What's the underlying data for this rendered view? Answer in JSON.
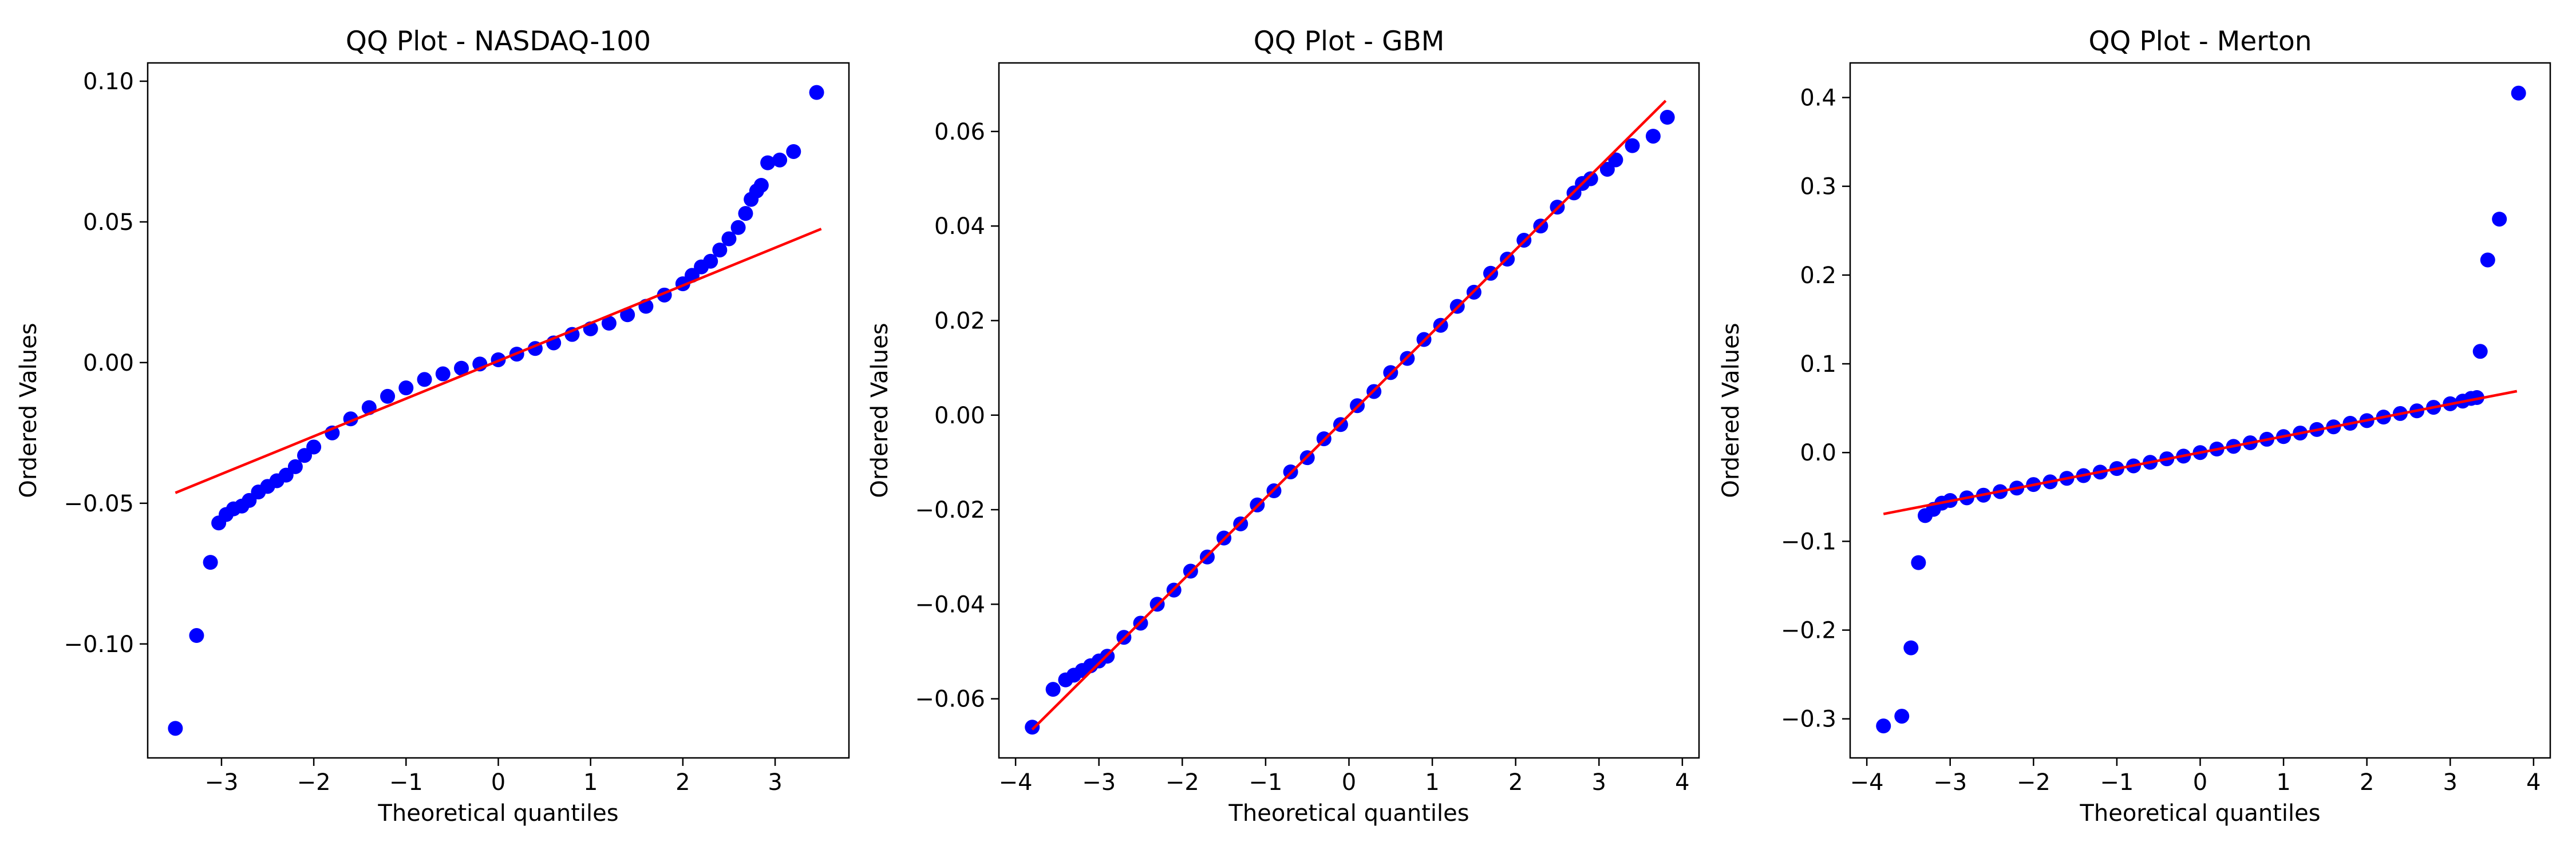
{
  "chart_data": [
    {
      "type": "scatter",
      "title": "QQ Plot - NASDAQ-100",
      "xlabel": "Theoretical quantiles",
      "ylabel": "Ordered Values",
      "xlim": [
        -3.8,
        3.8
      ],
      "ylim": [
        -0.1405,
        0.1065
      ],
      "xticks": [
        -3,
        -2,
        -1,
        0,
        1,
        2,
        3
      ],
      "xtick_labels": [
        "−3",
        "−2",
        "−1",
        "0",
        "1",
        "2",
        "3"
      ],
      "yticks": [
        -0.1,
        -0.05,
        0.0,
        0.05,
        0.1
      ],
      "ytick_labels": [
        "−0.10",
        "−0.05",
        "0.00",
        "0.05",
        "0.10"
      ],
      "grid": false,
      "marker_color": "#0000ff",
      "line_color": "#ff0000",
      "fit_line": {
        "slope": 0.0134,
        "intercept": 0.0006,
        "x_range": [
          -3.5,
          3.5
        ]
      },
      "points": [
        [
          -3.5,
          -0.13
        ],
        [
          -3.27,
          -0.097
        ],
        [
          -3.12,
          -0.071
        ],
        [
          -3.03,
          -0.057
        ],
        [
          -2.95,
          -0.054
        ],
        [
          -2.87,
          -0.052
        ],
        [
          -2.78,
          -0.051
        ],
        [
          -2.7,
          -0.049
        ],
        [
          -2.6,
          -0.046
        ],
        [
          -2.5,
          -0.044
        ],
        [
          -2.4,
          -0.042
        ],
        [
          -2.3,
          -0.04
        ],
        [
          -2.2,
          -0.037
        ],
        [
          -2.1,
          -0.033
        ],
        [
          -2.0,
          -0.03
        ],
        [
          -1.8,
          -0.025
        ],
        [
          -1.6,
          -0.02
        ],
        [
          -1.4,
          -0.016
        ],
        [
          -1.2,
          -0.012
        ],
        [
          -1.0,
          -0.009
        ],
        [
          -0.8,
          -0.006
        ],
        [
          -0.6,
          -0.004
        ],
        [
          -0.4,
          -0.002
        ],
        [
          -0.2,
          -0.0005
        ],
        [
          0.0,
          0.001
        ],
        [
          0.2,
          0.003
        ],
        [
          0.4,
          0.005
        ],
        [
          0.6,
          0.007
        ],
        [
          0.8,
          0.01
        ],
        [
          1.0,
          0.012
        ],
        [
          1.2,
          0.014
        ],
        [
          1.4,
          0.017
        ],
        [
          1.6,
          0.02
        ],
        [
          1.8,
          0.024
        ],
        [
          2.0,
          0.028
        ],
        [
          2.1,
          0.031
        ],
        [
          2.2,
          0.034
        ],
        [
          2.3,
          0.036
        ],
        [
          2.4,
          0.04
        ],
        [
          2.5,
          0.044
        ],
        [
          2.6,
          0.048
        ],
        [
          2.68,
          0.053
        ],
        [
          2.74,
          0.058
        ],
        [
          2.8,
          0.061
        ],
        [
          2.85,
          0.063
        ],
        [
          2.92,
          0.071
        ],
        [
          3.05,
          0.072
        ],
        [
          3.2,
          0.075
        ],
        [
          3.45,
          0.096
        ]
      ]
    },
    {
      "type": "scatter",
      "title": "QQ Plot - GBM",
      "xlabel": "Theoretical quantiles",
      "ylabel": "Ordered Values",
      "xlim": [
        -4.2,
        4.2
      ],
      "ylim": [
        -0.0725,
        0.0745
      ],
      "xticks": [
        -4,
        -3,
        -2,
        -1,
        0,
        1,
        2,
        3,
        4
      ],
      "xtick_labels": [
        "−4",
        "−3",
        "−2",
        "−1",
        "0",
        "1",
        "2",
        "3",
        "4"
      ],
      "yticks": [
        -0.06,
        -0.04,
        -0.02,
        0.0,
        0.02,
        0.04,
        0.06
      ],
      "ytick_labels": [
        "−0.06",
        "−0.04",
        "−0.02",
        "0.00",
        "0.02",
        "0.04",
        "0.06"
      ],
      "grid": false,
      "marker_color": "#0000ff",
      "line_color": "#ff0000",
      "fit_line": {
        "slope": 0.0175,
        "intercept": 0.0,
        "x_range": [
          -3.8,
          3.8
        ]
      },
      "points": [
        [
          -3.8,
          -0.066
        ],
        [
          -3.55,
          -0.058
        ],
        [
          -3.4,
          -0.056
        ],
        [
          -3.3,
          -0.055
        ],
        [
          -3.2,
          -0.054
        ],
        [
          -3.1,
          -0.053
        ],
        [
          -3.0,
          -0.052
        ],
        [
          -2.9,
          -0.051
        ],
        [
          -2.7,
          -0.047
        ],
        [
          -2.5,
          -0.044
        ],
        [
          -2.3,
          -0.04
        ],
        [
          -2.1,
          -0.037
        ],
        [
          -1.9,
          -0.033
        ],
        [
          -1.7,
          -0.03
        ],
        [
          -1.5,
          -0.026
        ],
        [
          -1.3,
          -0.023
        ],
        [
          -1.1,
          -0.019
        ],
        [
          -0.9,
          -0.016
        ],
        [
          -0.7,
          -0.012
        ],
        [
          -0.5,
          -0.009
        ],
        [
          -0.3,
          -0.005
        ],
        [
          -0.1,
          -0.002
        ],
        [
          0.1,
          0.002
        ],
        [
          0.3,
          0.005
        ],
        [
          0.5,
          0.009
        ],
        [
          0.7,
          0.012
        ],
        [
          0.9,
          0.016
        ],
        [
          1.1,
          0.019
        ],
        [
          1.3,
          0.023
        ],
        [
          1.5,
          0.026
        ],
        [
          1.7,
          0.03
        ],
        [
          1.9,
          0.033
        ],
        [
          2.1,
          0.037
        ],
        [
          2.3,
          0.04
        ],
        [
          2.5,
          0.044
        ],
        [
          2.7,
          0.047
        ],
        [
          2.8,
          0.049
        ],
        [
          2.9,
          0.05
        ],
        [
          3.1,
          0.052
        ],
        [
          3.2,
          0.054
        ],
        [
          3.4,
          0.057
        ],
        [
          3.65,
          0.059
        ],
        [
          3.82,
          0.063
        ]
      ]
    },
    {
      "type": "scatter",
      "title": "QQ Plot - Merton",
      "xlabel": "Theoretical quantiles",
      "ylabel": "Ordered Values",
      "xlim": [
        -4.2,
        4.2
      ],
      "ylim": [
        -0.344,
        0.439
      ],
      "xticks": [
        -4,
        -3,
        -2,
        -1,
        0,
        1,
        2,
        3,
        4
      ],
      "xtick_labels": [
        "−4",
        "−3",
        "−2",
        "−1",
        "0",
        "1",
        "2",
        "3",
        "4"
      ],
      "yticks": [
        -0.3,
        -0.2,
        -0.1,
        0.0,
        0.1,
        0.2,
        0.3,
        0.4
      ],
      "ytick_labels": [
        "−0.3",
        "−0.2",
        "−0.1",
        "0.0",
        "0.1",
        "0.2",
        "0.3",
        "0.4"
      ],
      "grid": false,
      "marker_color": "#0000ff",
      "line_color": "#ff0000",
      "fit_line": {
        "slope": 0.0182,
        "intercept": 0.0,
        "x_range": [
          -3.8,
          3.8
        ]
      },
      "points": [
        [
          -3.8,
          -0.308
        ],
        [
          -3.58,
          -0.297
        ],
        [
          -3.47,
          -0.22
        ],
        [
          -3.38,
          -0.124
        ],
        [
          -3.3,
          -0.071
        ],
        [
          -3.2,
          -0.064
        ],
        [
          -3.1,
          -0.057
        ],
        [
          -3.0,
          -0.054
        ],
        [
          -2.8,
          -0.051
        ],
        [
          -2.6,
          -0.048
        ],
        [
          -2.4,
          -0.044
        ],
        [
          -2.2,
          -0.04
        ],
        [
          -2.0,
          -0.036
        ],
        [
          -1.8,
          -0.033
        ],
        [
          -1.6,
          -0.029
        ],
        [
          -1.4,
          -0.026
        ],
        [
          -1.2,
          -0.022
        ],
        [
          -1.0,
          -0.018
        ],
        [
          -0.8,
          -0.015
        ],
        [
          -0.6,
          -0.011
        ],
        [
          -0.4,
          -0.007
        ],
        [
          -0.2,
          -0.004
        ],
        [
          0.0,
          0.0
        ],
        [
          0.2,
          0.004
        ],
        [
          0.4,
          0.007
        ],
        [
          0.6,
          0.011
        ],
        [
          0.8,
          0.015
        ],
        [
          1.0,
          0.018
        ],
        [
          1.2,
          0.022
        ],
        [
          1.4,
          0.026
        ],
        [
          1.6,
          0.029
        ],
        [
          1.8,
          0.033
        ],
        [
          2.0,
          0.036
        ],
        [
          2.2,
          0.04
        ],
        [
          2.4,
          0.044
        ],
        [
          2.6,
          0.047
        ],
        [
          2.8,
          0.051
        ],
        [
          3.0,
          0.055
        ],
        [
          3.15,
          0.058
        ],
        [
          3.25,
          0.061
        ],
        [
          3.32,
          0.062
        ],
        [
          3.36,
          0.114
        ],
        [
          3.45,
          0.217
        ],
        [
          3.59,
          0.263
        ],
        [
          3.82,
          0.405
        ]
      ]
    }
  ]
}
